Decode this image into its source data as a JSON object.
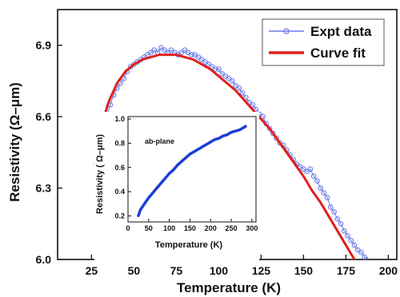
{
  "chart_data": [
    {
      "type": "scatter",
      "xlabel": "Temperature (K)",
      "ylabel": "Resistivity (Ω–μm)",
      "xlim": [
        5,
        205
      ],
      "ylim": [
        6.0,
        7.05
      ],
      "xticks": [
        25,
        50,
        75,
        100,
        125,
        150,
        175,
        200
      ],
      "yticks": [
        6.0,
        6.3,
        6.6,
        6.9
      ],
      "ytick_labels": [
        "6.0",
        "6.3",
        "6.6",
        "6.9"
      ],
      "legend": {
        "placement": "top-right",
        "entries": [
          "Expt data",
          "Curve fit"
        ]
      },
      "series": [
        {
          "name": "Expt data",
          "style": "line+open-circles",
          "color": "#6b7de8",
          "x": [
            28,
            30,
            32,
            34,
            36,
            38,
            40,
            42,
            44,
            46,
            48,
            50,
            52,
            54,
            56,
            58,
            60,
            62,
            64,
            66,
            68,
            70,
            72,
            74,
            76,
            78,
            80,
            82,
            84,
            86,
            88,
            90,
            92,
            94,
            96,
            98,
            100,
            102,
            104,
            106,
            108,
            110,
            112,
            114,
            116,
            118,
            120,
            122,
            124,
            126,
            128,
            130,
            132,
            134,
            136,
            138,
            140,
            142,
            144,
            146,
            148,
            150,
            152,
            154,
            156,
            158,
            160,
            162,
            164,
            166,
            168,
            170,
            172,
            174,
            176,
            178,
            180,
            182,
            184,
            186,
            187
          ],
          "y": [
            6.4,
            6.49,
            6.55,
            6.6,
            6.65,
            6.69,
            6.72,
            6.74,
            6.76,
            6.79,
            6.81,
            6.82,
            6.83,
            6.84,
            6.85,
            6.86,
            6.87,
            6.88,
            6.87,
            6.89,
            6.88,
            6.87,
            6.88,
            6.87,
            6.86,
            6.87,
            6.88,
            6.87,
            6.86,
            6.86,
            6.85,
            6.84,
            6.83,
            6.82,
            6.81,
            6.8,
            6.8,
            6.78,
            6.77,
            6.76,
            6.75,
            6.73,
            6.72,
            6.7,
            6.68,
            6.66,
            6.65,
            6.63,
            6.61,
            6.6,
            6.57,
            6.55,
            6.53,
            6.51,
            6.49,
            6.48,
            6.46,
            6.44,
            6.42,
            6.4,
            6.39,
            6.38,
            6.37,
            6.38,
            6.35,
            6.33,
            6.3,
            6.28,
            6.26,
            6.22,
            6.2,
            6.17,
            6.15,
            6.12,
            6.1,
            6.08,
            6.06,
            6.04,
            6.03,
            6.01,
            6.0
          ]
        },
        {
          "name": "Curve fit",
          "style": "line",
          "color": "#e0201c",
          "x": [
            28,
            30,
            35,
            40,
            45,
            50,
            55,
            60,
            65,
            70,
            75,
            80,
            85,
            90,
            95,
            100,
            105,
            110,
            115,
            120,
            125,
            130,
            135,
            140,
            145,
            150,
            155,
            160,
            165,
            170,
            175,
            180,
            185
          ],
          "y": [
            6.45,
            6.54,
            6.66,
            6.74,
            6.79,
            6.82,
            6.84,
            6.85,
            6.86,
            6.86,
            6.86,
            6.85,
            6.84,
            6.82,
            6.8,
            6.77,
            6.74,
            6.71,
            6.67,
            6.63,
            6.59,
            6.55,
            6.5,
            6.45,
            6.4,
            6.35,
            6.29,
            6.24,
            6.18,
            6.12,
            6.06,
            6.0,
            5.94
          ]
        }
      ]
    },
    {
      "type": "scatter",
      "annotation": "ab-plane",
      "xlabel": "Temperature (K)",
      "ylabel": "Resistivity ( Ω–μm)",
      "xlim": [
        0,
        310
      ],
      "ylim": [
        0.15,
        1.02
      ],
      "xticks": [
        0,
        50,
        100,
        150,
        200,
        250,
        300
      ],
      "yticks": [
        0.2,
        0.4,
        0.6,
        0.8,
        1.0
      ],
      "ytick_labels": [
        "0.2",
        "0.4",
        "0.6",
        "0.8",
        "1.0"
      ],
      "series": [
        {
          "color": "#1a3fd4",
          "x": [
            25,
            30,
            40,
            50,
            60,
            70,
            80,
            90,
            100,
            110,
            120,
            130,
            140,
            150,
            160,
            170,
            180,
            190,
            200,
            210,
            220,
            230,
            240,
            250,
            260,
            270,
            280,
            285
          ],
          "y": [
            0.2,
            0.25,
            0.3,
            0.35,
            0.39,
            0.43,
            0.47,
            0.51,
            0.55,
            0.58,
            0.62,
            0.65,
            0.68,
            0.71,
            0.73,
            0.75,
            0.77,
            0.79,
            0.81,
            0.83,
            0.84,
            0.86,
            0.87,
            0.89,
            0.9,
            0.91,
            0.93,
            0.94
          ]
        }
      ]
    }
  ]
}
